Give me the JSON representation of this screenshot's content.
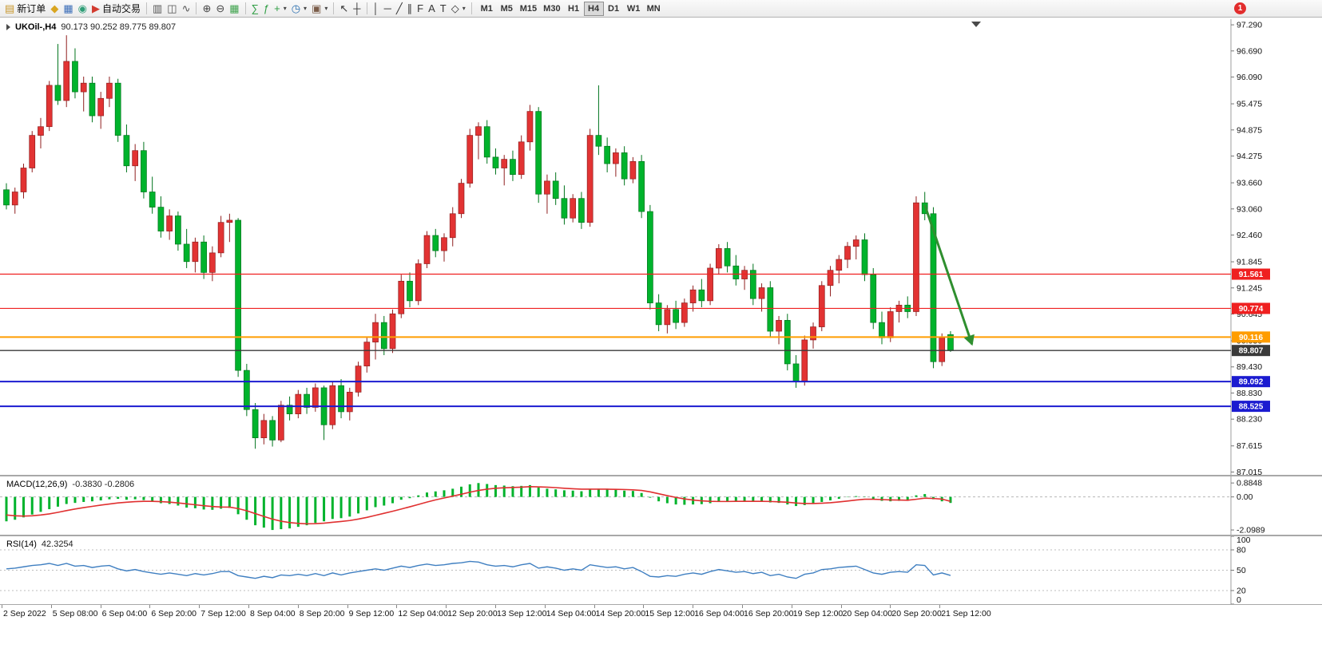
{
  "window": {
    "badge_count": "1"
  },
  "toolbar": {
    "items": [
      {
        "name": "new-order-button",
        "glyph": "▤",
        "glyph_color": "#c8962a",
        "label": "新订单"
      },
      {
        "name": "chart-window-button",
        "glyph": "◆",
        "glyph_color": "#d9a520"
      },
      {
        "name": "profiles-button",
        "glyph": "▦",
        "glyph_color": "#3a6db8"
      },
      {
        "name": "data-window-button",
        "glyph": "◉",
        "glyph_color": "#2f9e77"
      },
      {
        "name": "auto-trading-button",
        "glyph": "▶",
        "glyph_color": "#d23b2f",
        "label": "自动交易"
      },
      {
        "divider": true
      },
      {
        "name": "bar-chart-button",
        "glyph": "▥",
        "glyph_color": "#555555"
      },
      {
        "name": "candlestick-chart-button",
        "glyph": "◫",
        "glyph_color": "#555555"
      },
      {
        "name": "line-chart-button",
        "glyph": "∿",
        "glyph_color": "#555555"
      },
      {
        "divider": true
      },
      {
        "name": "zoom-in-button",
        "glyph": "⊕",
        "glyph_color": "#444444"
      },
      {
        "name": "zoom-out-button",
        "glyph": "⊖",
        "glyph_color": "#444444"
      },
      {
        "name": "tile-windows-button",
        "glyph": "▦",
        "glyph_color": "#3fa34d"
      },
      {
        "divider": true
      },
      {
        "name": "indicators-button",
        "glyph": "∑",
        "glyph_color": "#2f9e44"
      },
      {
        "name": "objects-list-button",
        "glyph": "ƒ",
        "glyph_color": "#2f9e44"
      },
      {
        "name": "add-indicator-dropdown",
        "glyph": "+",
        "glyph_color": "#2f9e44",
        "dropdown": true
      },
      {
        "name": "periods-dropdown",
        "glyph": "◷",
        "glyph_color": "#2a6fb0",
        "dropdown": true
      },
      {
        "name": "templates-dropdown",
        "glyph": "▣",
        "glyph_color": "#7a5c49",
        "dropdown": true
      },
      {
        "divider": true
      },
      {
        "name": "cursor-button",
        "glyph": "↖",
        "glyph_color": "#333333"
      },
      {
        "name": "crosshair-button",
        "glyph": "┼",
        "glyph_color": "#333333"
      },
      {
        "divider": true
      },
      {
        "name": "vertical-line-button",
        "glyph": "│",
        "glyph_color": "#333333"
      },
      {
        "name": "horizontal-line-button",
        "glyph": "─",
        "glyph_color": "#333333"
      },
      {
        "name": "trendline-button",
        "glyph": "╱",
        "glyph_color": "#333333"
      },
      {
        "name": "equidistant-channel-button",
        "glyph": "∥",
        "glyph_color": "#333333"
      },
      {
        "name": "fibonacci-button",
        "glyph": "F",
        "glyph_color": "#333333"
      },
      {
        "name": "text-button",
        "glyph": "A",
        "glyph_color": "#333333"
      },
      {
        "name": "text-label-button",
        "glyph": "T",
        "glyph_color": "#333333"
      },
      {
        "name": "shapes-dropdown",
        "glyph": "◇",
        "glyph_color": "#333333",
        "dropdown": true
      },
      {
        "divider": true
      }
    ],
    "timeframes": [
      "M1",
      "M5",
      "M15",
      "M30",
      "H1",
      "H4",
      "D1",
      "W1",
      "MN"
    ],
    "active_timeframe": "H4"
  },
  "chart_data": {
    "type": "candlestick",
    "header": {
      "symbol_tf": "UKOil-,H4",
      "ohlc": "90.173 90.252 89.775 89.807"
    },
    "colors": {
      "up": "#e23333",
      "up_border": "#901f1f",
      "down": "#00b32c",
      "down_border": "#00741c"
    },
    "price_range": [
      97.42,
      86.95
    ],
    "price_axis_labels": [
      "97.290",
      "96.690",
      "96.090",
      "95.475",
      "94.875",
      "94.275",
      "93.660",
      "93.060",
      "92.460",
      "91.845",
      "91.245",
      "90.645",
      "90.030",
      "89.430",
      "88.830",
      "88.230",
      "87.615",
      "87.015"
    ],
    "time_labels": [
      "2 Sep 2022",
      "5 Sep 08:00",
      "6 Sep 04:00",
      "6 Sep 20:00",
      "7 Sep 12:00",
      "8 Sep 04:00",
      "8 Sep 20:00",
      "9 Sep 12:00",
      "12 Sep 04:00",
      "12 Sep 20:00",
      "13 Sep 12:00",
      "14 Sep 04:00",
      "14 Sep 20:00",
      "15 Sep 12:00",
      "16 Sep 04:00",
      "16 Sep 20:00",
      "19 Sep 12:00",
      "20 Sep 04:00",
      "20 Sep 20:00",
      "21 Sep 12:00"
    ],
    "candles": [
      [
        93.5,
        93.65,
        93.05,
        93.15
      ],
      [
        93.15,
        93.55,
        92.95,
        93.45
      ],
      [
        93.45,
        94.1,
        93.3,
        94.0
      ],
      [
        94.0,
        94.85,
        93.9,
        94.75
      ],
      [
        94.75,
        95.15,
        94.45,
        94.95
      ],
      [
        94.95,
        96.0,
        94.85,
        95.9
      ],
      [
        95.9,
        96.85,
        95.45,
        95.55
      ],
      [
        95.55,
        97.05,
        95.4,
        96.45
      ],
      [
        96.45,
        96.75,
        95.6,
        95.75
      ],
      [
        95.75,
        96.1,
        95.3,
        95.95
      ],
      [
        95.95,
        96.1,
        95.05,
        95.2
      ],
      [
        95.2,
        95.75,
        94.9,
        95.6
      ],
      [
        95.6,
        96.1,
        95.4,
        95.95
      ],
      [
        95.95,
        96.05,
        94.6,
        94.75
      ],
      [
        94.75,
        95.0,
        93.9,
        94.05
      ],
      [
        94.05,
        94.55,
        93.7,
        94.4
      ],
      [
        94.4,
        94.6,
        93.3,
        93.45
      ],
      [
        93.45,
        93.8,
        92.95,
        93.1
      ],
      [
        93.1,
        93.35,
        92.4,
        92.55
      ],
      [
        92.55,
        93.05,
        92.35,
        92.9
      ],
      [
        92.9,
        93.0,
        92.1,
        92.25
      ],
      [
        92.25,
        92.6,
        91.7,
        91.85
      ],
      [
        91.85,
        92.4,
        91.6,
        92.3
      ],
      [
        92.3,
        92.45,
        91.45,
        91.6
      ],
      [
        91.6,
        92.2,
        91.4,
        92.05
      ],
      [
        92.05,
        92.9,
        91.95,
        92.75
      ],
      [
        92.75,
        92.95,
        92.3,
        92.8
      ],
      [
        92.8,
        92.85,
        89.2,
        89.35
      ],
      [
        89.35,
        89.5,
        88.3,
        88.45
      ],
      [
        88.45,
        88.6,
        87.55,
        87.8
      ],
      [
        87.8,
        88.35,
        87.65,
        88.2
      ],
      [
        88.2,
        88.3,
        87.6,
        87.75
      ],
      [
        87.75,
        88.65,
        87.7,
        88.55
      ],
      [
        88.55,
        88.75,
        88.2,
        88.35
      ],
      [
        88.35,
        88.9,
        88.25,
        88.8
      ],
      [
        88.8,
        88.95,
        88.35,
        88.5
      ],
      [
        88.5,
        89.05,
        88.4,
        88.95
      ],
      [
        88.95,
        89.0,
        87.75,
        88.1
      ],
      [
        88.1,
        89.1,
        88.0,
        89.0
      ],
      [
        89.0,
        89.15,
        88.25,
        88.4
      ],
      [
        88.4,
        88.95,
        88.2,
        88.85
      ],
      [
        88.85,
        89.55,
        88.75,
        89.45
      ],
      [
        89.45,
        90.1,
        89.3,
        90.0
      ],
      [
        90.0,
        90.65,
        89.6,
        90.45
      ],
      [
        90.45,
        90.6,
        89.7,
        89.85
      ],
      [
        89.85,
        90.75,
        89.75,
        90.65
      ],
      [
        90.65,
        91.55,
        90.55,
        91.4
      ],
      [
        91.4,
        91.6,
        90.8,
        90.95
      ],
      [
        90.95,
        91.9,
        90.85,
        91.8
      ],
      [
        91.8,
        92.55,
        91.7,
        92.45
      ],
      [
        92.45,
        92.6,
        91.95,
        92.1
      ],
      [
        92.1,
        92.5,
        91.85,
        92.4
      ],
      [
        92.4,
        93.1,
        92.2,
        92.95
      ],
      [
        92.95,
        93.75,
        92.85,
        93.65
      ],
      [
        93.65,
        94.9,
        93.55,
        94.75
      ],
      [
        94.75,
        95.05,
        94.2,
        94.95
      ],
      [
        94.95,
        95.1,
        94.1,
        94.25
      ],
      [
        94.25,
        94.45,
        93.85,
        94.0
      ],
      [
        94.0,
        94.3,
        93.6,
        94.2
      ],
      [
        94.2,
        94.4,
        93.7,
        93.85
      ],
      [
        93.85,
        94.75,
        93.75,
        94.6
      ],
      [
        94.6,
        95.45,
        94.4,
        95.3
      ],
      [
        95.3,
        95.4,
        93.2,
        93.4
      ],
      [
        93.4,
        93.85,
        92.95,
        93.7
      ],
      [
        93.7,
        93.9,
        93.15,
        93.3
      ],
      [
        93.3,
        93.6,
        92.7,
        92.85
      ],
      [
        92.85,
        93.4,
        92.75,
        93.3
      ],
      [
        93.3,
        93.45,
        92.6,
        92.75
      ],
      [
        92.75,
        94.9,
        92.65,
        94.75
      ],
      [
        94.75,
        95.9,
        94.3,
        94.5
      ],
      [
        94.5,
        94.7,
        93.9,
        94.1
      ],
      [
        94.1,
        94.45,
        93.8,
        94.35
      ],
      [
        94.35,
        94.5,
        93.6,
        93.75
      ],
      [
        93.75,
        94.25,
        93.65,
        94.15
      ],
      [
        94.15,
        94.3,
        92.85,
        93.0
      ],
      [
        93.0,
        93.15,
        90.75,
        90.9
      ],
      [
        90.9,
        91.1,
        90.25,
        90.4
      ],
      [
        90.4,
        90.85,
        90.2,
        90.75
      ],
      [
        90.75,
        90.95,
        90.3,
        90.45
      ],
      [
        90.45,
        91.0,
        90.35,
        90.9
      ],
      [
        90.9,
        91.3,
        90.7,
        91.2
      ],
      [
        91.2,
        91.45,
        90.8,
        90.95
      ],
      [
        90.95,
        91.8,
        90.85,
        91.7
      ],
      [
        91.7,
        92.25,
        91.55,
        92.15
      ],
      [
        92.15,
        92.3,
        91.6,
        91.75
      ],
      [
        91.75,
        92.0,
        91.3,
        91.45
      ],
      [
        91.45,
        91.75,
        91.2,
        91.65
      ],
      [
        91.65,
        91.8,
        90.85,
        91.0
      ],
      [
        91.0,
        91.35,
        90.7,
        91.25
      ],
      [
        91.25,
        91.4,
        90.1,
        90.25
      ],
      [
        90.25,
        90.6,
        89.95,
        90.5
      ],
      [
        90.5,
        90.65,
        89.35,
        89.5
      ],
      [
        89.5,
        89.7,
        88.95,
        89.1
      ],
      [
        89.1,
        90.15,
        89.0,
        90.05
      ],
      [
        90.05,
        90.45,
        89.85,
        90.35
      ],
      [
        90.35,
        91.4,
        90.25,
        91.3
      ],
      [
        91.3,
        91.75,
        91.05,
        91.65
      ],
      [
        91.65,
        92.0,
        91.35,
        91.9
      ],
      [
        91.9,
        92.3,
        91.7,
        92.2
      ],
      [
        92.2,
        92.45,
        91.9,
        92.35
      ],
      [
        92.35,
        92.5,
        91.4,
        91.55
      ],
      [
        91.55,
        91.7,
        90.3,
        90.45
      ],
      [
        90.45,
        90.7,
        89.95,
        90.1
      ],
      [
        90.1,
        90.8,
        90.0,
        90.7
      ],
      [
        90.7,
        90.95,
        90.45,
        90.85
      ],
      [
        90.85,
        91.05,
        90.55,
        90.7
      ],
      [
        90.7,
        93.35,
        90.6,
        93.2
      ],
      [
        93.2,
        93.45,
        92.8,
        92.95
      ],
      [
        92.95,
        93.1,
        89.4,
        89.55
      ],
      [
        89.55,
        90.2,
        89.45,
        90.1
      ],
      [
        90.173,
        90.252,
        89.775,
        89.807
      ]
    ],
    "levels": [
      {
        "label": "91.561",
        "price": 91.561,
        "color": "#ef2020",
        "width": 1.2
      },
      {
        "label": "90.774",
        "price": 90.774,
        "color": "#ef2020",
        "width": 1.2
      },
      {
        "label": "90.116",
        "price": 90.116,
        "color": "#ff9d00",
        "width": 2
      },
      {
        "label": "89.807",
        "price": 89.807,
        "color": "#3a3a3a",
        "width": 1.4,
        "is_current_price": true
      },
      {
        "label": "89.092",
        "price": 89.092,
        "color": "#1b1bd0",
        "width": 2
      },
      {
        "label": "88.525",
        "price": 88.525,
        "color": "#1b1bd0",
        "width": 2
      }
    ],
    "arrow": {
      "from_index": 107,
      "from_price": 93.15,
      "to_index": 112.5,
      "to_price": 89.95,
      "color": "#2f8f2f"
    },
    "macd": {
      "label": "MACD(12,26,9)",
      "values_label": "-0.3830 -0.2806",
      "range": [
        1.3,
        -2.4
      ],
      "histogram_color": "#00b32c",
      "signal_color": "#e03030",
      "axis": [
        {
          "label": "0.8848",
          "value": 0.8848
        },
        {
          "label": "0.00",
          "value": 0
        },
        {
          "label": "-2.0989",
          "value": -2.0989
        }
      ],
      "histogram": [
        -1.55,
        -1.45,
        -1.3,
        -1.12,
        -0.95,
        -0.78,
        -0.62,
        -0.45,
        -0.38,
        -0.32,
        -0.28,
        -0.22,
        -0.15,
        -0.12,
        -0.18,
        -0.15,
        -0.2,
        -0.28,
        -0.4,
        -0.45,
        -0.55,
        -0.68,
        -0.72,
        -0.8,
        -0.82,
        -0.75,
        -0.7,
        -1.1,
        -1.45,
        -1.8,
        -1.95,
        -2.1,
        -2.05,
        -2.0,
        -1.9,
        -1.8,
        -1.65,
        -1.55,
        -1.4,
        -1.35,
        -1.25,
        -1.05,
        -0.85,
        -0.65,
        -0.55,
        -0.4,
        -0.18,
        -0.08,
        0.1,
        0.28,
        0.35,
        0.42,
        0.52,
        0.65,
        0.8,
        0.88,
        0.82,
        0.75,
        0.72,
        0.68,
        0.7,
        0.75,
        0.6,
        0.52,
        0.48,
        0.42,
        0.4,
        0.36,
        0.48,
        0.52,
        0.48,
        0.45,
        0.4,
        0.38,
        0.25,
        -0.05,
        -0.28,
        -0.4,
        -0.48,
        -0.5,
        -0.48,
        -0.46,
        -0.4,
        -0.32,
        -0.28,
        -0.28,
        -0.26,
        -0.28,
        -0.26,
        -0.35,
        -0.38,
        -0.48,
        -0.58,
        -0.52,
        -0.45,
        -0.32,
        -0.22,
        -0.12,
        -0.02,
        0.05,
        0.02,
        -0.12,
        -0.25,
        -0.28,
        -0.25,
        -0.25,
        0.1,
        0.18,
        -0.15,
        -0.28,
        -0.383
      ],
      "signal": [
        -1.15,
        -1.2,
        -1.22,
        -1.2,
        -1.15,
        -1.08,
        -0.98,
        -0.87,
        -0.77,
        -0.68,
        -0.6,
        -0.52,
        -0.45,
        -0.38,
        -0.34,
        -0.3,
        -0.28,
        -0.28,
        -0.3,
        -0.33,
        -0.38,
        -0.44,
        -0.5,
        -0.56,
        -0.61,
        -0.64,
        -0.65,
        -0.74,
        -0.88,
        -1.06,
        -1.24,
        -1.41,
        -1.54,
        -1.63,
        -1.68,
        -1.71,
        -1.7,
        -1.67,
        -1.61,
        -1.56,
        -1.5,
        -1.41,
        -1.3,
        -1.17,
        -1.04,
        -0.91,
        -0.77,
        -0.63,
        -0.48,
        -0.33,
        -0.19,
        -0.07,
        0.05,
        0.17,
        0.3,
        0.41,
        0.49,
        0.55,
        0.58,
        0.6,
        0.62,
        0.65,
        0.64,
        0.62,
        0.59,
        0.55,
        0.52,
        0.49,
        0.49,
        0.49,
        0.49,
        0.48,
        0.47,
        0.45,
        0.41,
        0.32,
        0.2,
        0.08,
        -0.03,
        -0.13,
        -0.2,
        -0.25,
        -0.28,
        -0.29,
        -0.29,
        -0.28,
        -0.28,
        -0.28,
        -0.28,
        -0.29,
        -0.31,
        -0.34,
        -0.39,
        -0.42,
        -0.42,
        -0.4,
        -0.37,
        -0.32,
        -0.26,
        -0.2,
        -0.15,
        -0.15,
        -0.17,
        -0.19,
        -0.2,
        -0.21,
        -0.15,
        -0.08,
        -0.1,
        -0.14,
        -0.2806
      ]
    },
    "rsi": {
      "label": "RSI(14)",
      "value_label": "42.3254",
      "range": [
        100,
        0
      ],
      "line_color": "#3f7fc1",
      "levels": [
        80,
        50,
        20
      ],
      "axis": [
        {
          "label": "100",
          "value": 100
        },
        {
          "label": "80",
          "value": 80
        },
        {
          "label": "50",
          "value": 50
        },
        {
          "label": "20",
          "value": 20
        },
        {
          "label": "0",
          "value": 0
        }
      ],
      "values": [
        52,
        53,
        55,
        57,
        58,
        60,
        57,
        60,
        56,
        57,
        54,
        56,
        57,
        52,
        49,
        51,
        48,
        46,
        44,
        46,
        44,
        42,
        45,
        43,
        45,
        48,
        48,
        42,
        40,
        38,
        41,
        39,
        43,
        42,
        44,
        42,
        45,
        42,
        46,
        43,
        46,
        48,
        50,
        52,
        50,
        53,
        56,
        54,
        57,
        59,
        57,
        58,
        60,
        61,
        63,
        62,
        58,
        56,
        57,
        55,
        58,
        60,
        53,
        55,
        53,
        50,
        52,
        50,
        58,
        56,
        54,
        55,
        52,
        54,
        48,
        41,
        40,
        42,
        41,
        44,
        46,
        44,
        48,
        51,
        49,
        47,
        48,
        45,
        47,
        42,
        44,
        40,
        38,
        44,
        46,
        51,
        52,
        54,
        55,
        56,
        51,
        46,
        44,
        47,
        48,
        47,
        58,
        57,
        43,
        46,
        42.3254
      ]
    }
  }
}
